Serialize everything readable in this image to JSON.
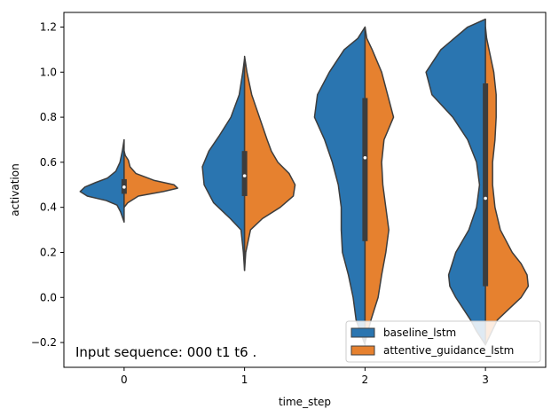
{
  "chart_data": {
    "type": "violin",
    "split": true,
    "xlabel": "time_step",
    "ylabel": "activation",
    "categories": [
      "0",
      "1",
      "2",
      "3"
    ],
    "ylim": [
      -0.31,
      1.265
    ],
    "yticks": [
      -0.2,
      0.0,
      0.2,
      0.4,
      0.6,
      0.8,
      1.0,
      1.2
    ],
    "ytick_labels": [
      "−0.2",
      "0.0",
      "0.2",
      "0.4",
      "0.6",
      "0.8",
      "1.0",
      "1.2"
    ],
    "legend": {
      "position": "lower-right"
    },
    "annotation": "Input sequence: 000 t1 t6 .",
    "series": [
      {
        "name": "baseline_lstm",
        "color": "#2a75b0",
        "side": "left",
        "violins": [
          {
            "category": "0",
            "profile": [
              [
                0.335,
                0.0
              ],
              [
                0.35,
                0.02
              ],
              [
                0.38,
                0.06
              ],
              [
                0.41,
                0.12
              ],
              [
                0.43,
                0.3
              ],
              [
                0.45,
                0.62
              ],
              [
                0.47,
                0.74
              ],
              [
                0.49,
                0.66
              ],
              [
                0.51,
                0.48
              ],
              [
                0.53,
                0.28
              ],
              [
                0.56,
                0.14
              ],
              [
                0.6,
                0.07
              ],
              [
                0.65,
                0.03
              ],
              [
                0.7,
                0.0
              ]
            ]
          },
          {
            "category": "1",
            "profile": [
              [
                0.12,
                0.0
              ],
              [
                0.2,
                0.02
              ],
              [
                0.3,
                0.06
              ],
              [
                0.35,
                0.24
              ],
              [
                0.42,
                0.52
              ],
              [
                0.5,
                0.68
              ],
              [
                0.58,
                0.71
              ],
              [
                0.65,
                0.6
              ],
              [
                0.72,
                0.42
              ],
              [
                0.8,
                0.23
              ],
              [
                0.9,
                0.09
              ],
              [
                1.0,
                0.03
              ],
              [
                1.06,
                0.0
              ]
            ]
          },
          {
            "category": "2",
            "profile": [
              [
                -0.21,
                0.0
              ],
              [
                -0.1,
                0.15
              ],
              [
                0.0,
                0.2
              ],
              [
                0.1,
                0.28
              ],
              [
                0.2,
                0.38
              ],
              [
                0.3,
                0.4
              ],
              [
                0.4,
                0.4
              ],
              [
                0.5,
                0.45
              ],
              [
                0.6,
                0.55
              ],
              [
                0.7,
                0.68
              ],
              [
                0.8,
                0.85
              ],
              [
                0.9,
                0.8
              ],
              [
                1.0,
                0.6
              ],
              [
                1.1,
                0.35
              ],
              [
                1.15,
                0.12
              ],
              [
                1.2,
                0.0
              ]
            ]
          },
          {
            "category": "3",
            "profile": [
              [
                -0.21,
                0.0
              ],
              [
                -0.15,
                0.15
              ],
              [
                -0.1,
                0.25
              ],
              [
                0.0,
                0.5
              ],
              [
                0.05,
                0.6
              ],
              [
                0.1,
                0.62
              ],
              [
                0.2,
                0.5
              ],
              [
                0.3,
                0.28
              ],
              [
                0.4,
                0.15
              ],
              [
                0.5,
                0.1
              ],
              [
                0.6,
                0.15
              ],
              [
                0.7,
                0.3
              ],
              [
                0.8,
                0.55
              ],
              [
                0.9,
                0.9
              ],
              [
                1.0,
                1.0
              ],
              [
                1.1,
                0.75
              ],
              [
                1.2,
                0.3
              ],
              [
                1.235,
                0.0
              ]
            ]
          }
        ]
      },
      {
        "name": "attentive_guidance_lstm",
        "color": "#e6812f",
        "side": "right",
        "violins": [
          {
            "category": "0",
            "profile": [
              [
                0.4,
                0.0
              ],
              [
                0.42,
                0.06
              ],
              [
                0.45,
                0.24
              ],
              [
                0.47,
                0.66
              ],
              [
                0.485,
                0.9
              ],
              [
                0.5,
                0.84
              ],
              [
                0.52,
                0.5
              ],
              [
                0.55,
                0.2
              ],
              [
                0.58,
                0.1
              ],
              [
                0.61,
                0.07
              ],
              [
                0.63,
                0.02
              ],
              [
                0.65,
                0.0
              ]
            ]
          },
          {
            "category": "1",
            "profile": [
              [
                0.12,
                0.0
              ],
              [
                0.2,
                0.02
              ],
              [
                0.3,
                0.1
              ],
              [
                0.35,
                0.3
              ],
              [
                0.4,
                0.6
              ],
              [
                0.45,
                0.82
              ],
              [
                0.5,
                0.85
              ],
              [
                0.55,
                0.75
              ],
              [
                0.6,
                0.56
              ],
              [
                0.65,
                0.45
              ],
              [
                0.7,
                0.38
              ],
              [
                0.8,
                0.25
              ],
              [
                0.9,
                0.12
              ],
              [
                1.0,
                0.04
              ],
              [
                1.07,
                0.0
              ]
            ]
          },
          {
            "category": "2",
            "profile": [
              [
                -0.2,
                0.0
              ],
              [
                -0.1,
                0.1
              ],
              [
                0.0,
                0.22
              ],
              [
                0.1,
                0.28
              ],
              [
                0.2,
                0.35
              ],
              [
                0.3,
                0.4
              ],
              [
                0.4,
                0.35
              ],
              [
                0.5,
                0.3
              ],
              [
                0.6,
                0.28
              ],
              [
                0.7,
                0.32
              ],
              [
                0.8,
                0.48
              ],
              [
                0.9,
                0.38
              ],
              [
                1.0,
                0.28
              ],
              [
                1.1,
                0.12
              ],
              [
                1.15,
                0.03
              ],
              [
                1.2,
                0.0
              ]
            ]
          },
          {
            "category": "3",
            "profile": [
              [
                -0.21,
                0.0
              ],
              [
                -0.1,
                0.2
              ],
              [
                -0.05,
                0.4
              ],
              [
                0.0,
                0.6
              ],
              [
                0.05,
                0.72
              ],
              [
                0.1,
                0.7
              ],
              [
                0.15,
                0.6
              ],
              [
                0.2,
                0.45
              ],
              [
                0.3,
                0.25
              ],
              [
                0.4,
                0.16
              ],
              [
                0.5,
                0.12
              ],
              [
                0.6,
                0.12
              ],
              [
                0.7,
                0.16
              ],
              [
                0.8,
                0.18
              ],
              [
                0.9,
                0.18
              ],
              [
                1.0,
                0.14
              ],
              [
                1.1,
                0.06
              ],
              [
                1.15,
                0.02
              ],
              [
                1.2,
                0.0
              ]
            ]
          }
        ]
      }
    ],
    "boxes": [
      {
        "category": "0",
        "q1": 0.46,
        "median": 0.49,
        "q3": 0.525
      },
      {
        "category": "1",
        "q1": 0.45,
        "median": 0.54,
        "q3": 0.65
      },
      {
        "category": "2",
        "q1": 0.25,
        "median": 0.62,
        "q3": 0.885
      },
      {
        "category": "3",
        "q1": 0.05,
        "median": 0.44,
        "q3": 0.95
      }
    ]
  }
}
